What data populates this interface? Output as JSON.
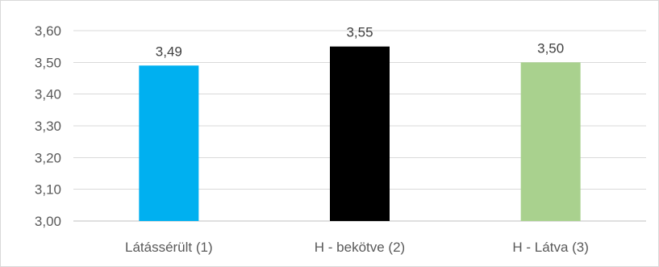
{
  "chart_data": {
    "type": "bar",
    "categories": [
      "Látássérült (1)",
      "H - bekötve (2)",
      "H - Látva (3)"
    ],
    "values": [
      3.49,
      3.55,
      3.5
    ],
    "data_labels": [
      "3,49",
      "3,55",
      "3,50"
    ],
    "colors": [
      "#00b0f0",
      "#000000",
      "#a9d18e"
    ],
    "ylim": [
      3.0,
      3.6
    ],
    "yticks": [
      3.0,
      3.1,
      3.2,
      3.3,
      3.4,
      3.5,
      3.6
    ],
    "ytick_labels": [
      "3,00",
      "3,10",
      "3,20",
      "3,30",
      "3,40",
      "3,50",
      "3,60"
    ],
    "grid": true,
    "legend": false,
    "title": "",
    "xlabel": "",
    "ylabel": ""
  }
}
